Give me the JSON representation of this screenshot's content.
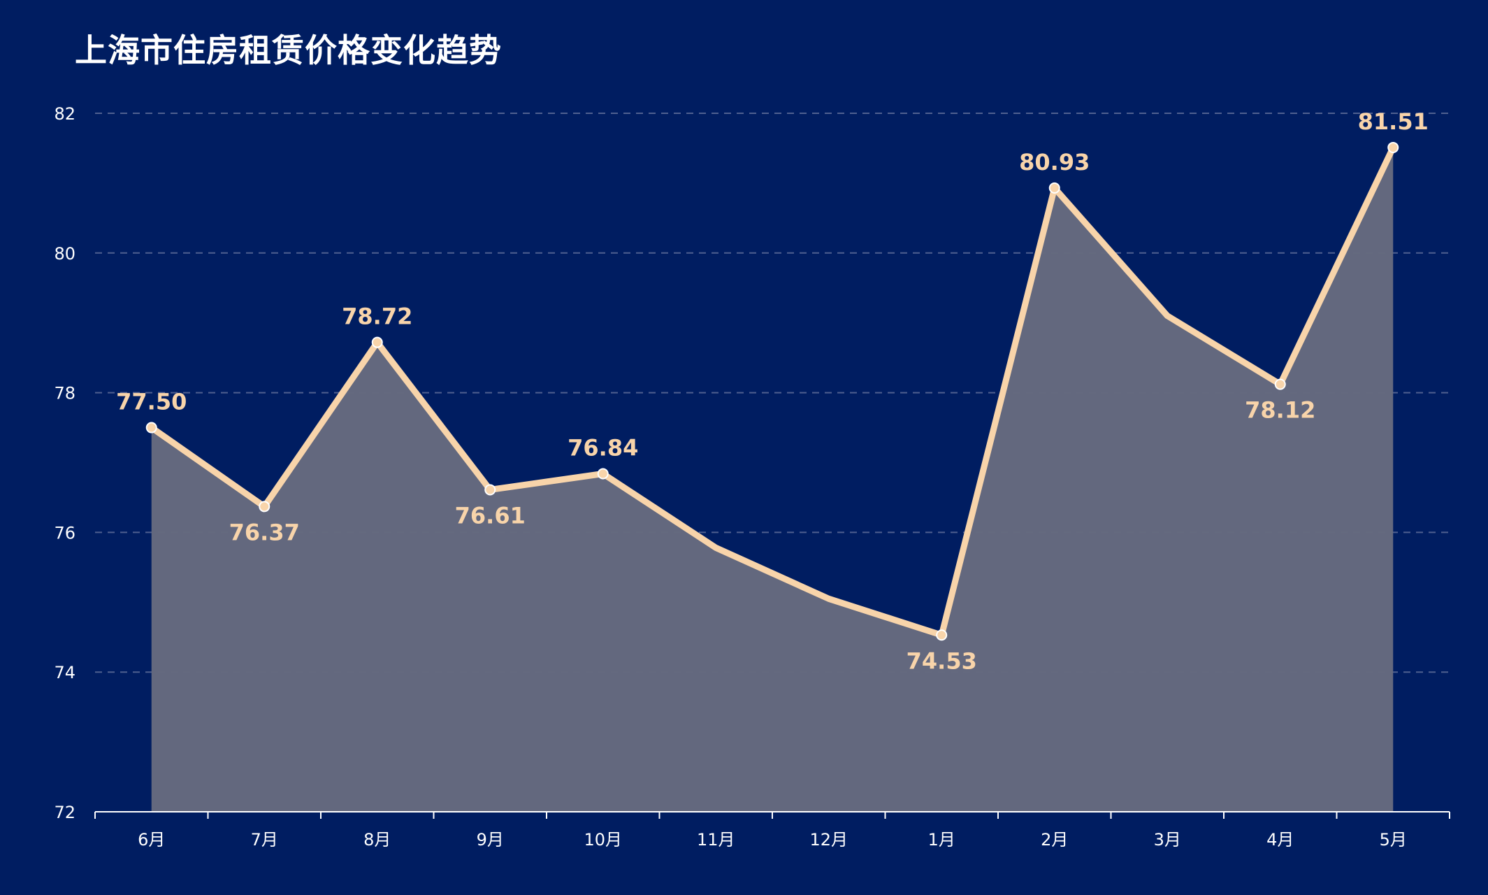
{
  "chart_data": {
    "type": "area",
    "title": "上海市住房租赁价格变化趋势",
    "xlabel": "",
    "ylabel": "",
    "categories": [
      "6月",
      "7月",
      "8月",
      "9月",
      "10月",
      "11月",
      "12月",
      "1月",
      "2月",
      "3月",
      "4月",
      "5月"
    ],
    "series": [
      {
        "values": [
          77.5,
          76.37,
          78.72,
          76.61,
          76.84,
          75.78,
          75.05,
          74.53,
          80.93,
          79.1,
          78.12,
          81.51
        ],
        "labels": [
          "77.50",
          "76.37",
          "78.72",
          "76.61",
          "76.84",
          "",
          "",
          "74.53",
          "80.93",
          "",
          "78.12",
          "81.51"
        ],
        "label_position": [
          "above",
          "below",
          "above",
          "below",
          "above",
          "none",
          "none",
          "below",
          "above",
          "none",
          "below",
          "above"
        ]
      }
    ],
    "yticks": [
      "72",
      "74",
      "76",
      "78",
      "80",
      "82"
    ],
    "ylim": [
      72,
      82
    ],
    "grid": true,
    "legend": "none"
  },
  "colors": {
    "background": "#001d61",
    "line": "#f8d4aa",
    "area": "#656a7e",
    "grid": "#4f6090",
    "axis": "#ffffff",
    "label": "#f8d4aa"
  }
}
